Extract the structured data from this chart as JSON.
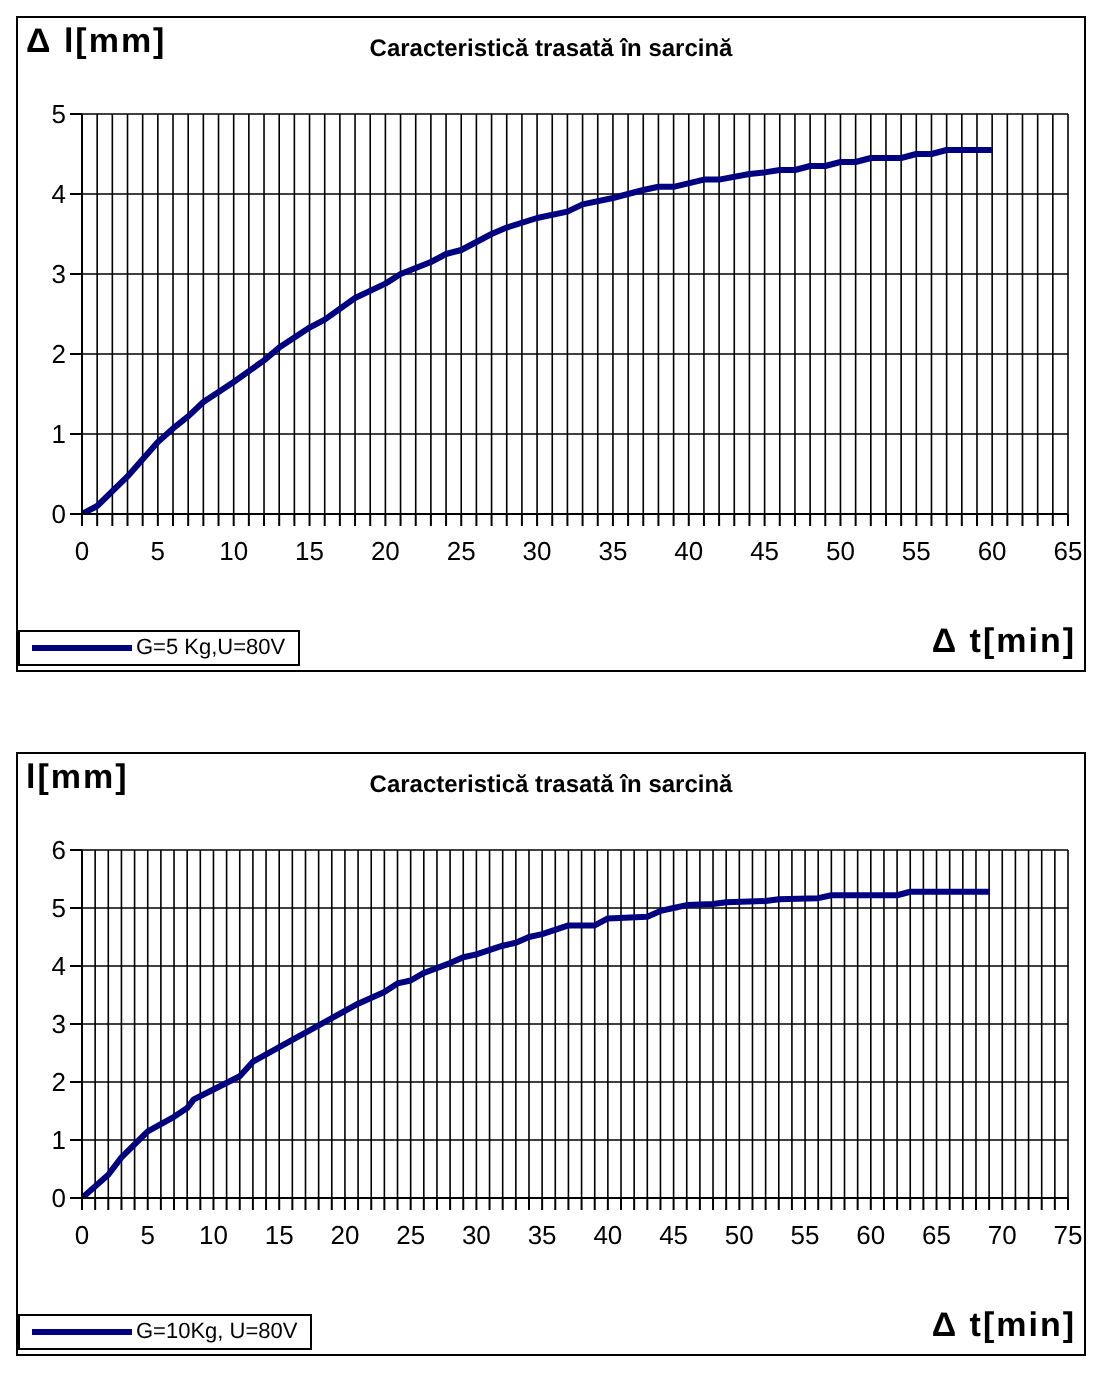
{
  "chart_data": [
    {
      "type": "line",
      "title": "Caracteristică trasată în sarcină",
      "xlabel": "Δ t[min]",
      "ylabel": "Δ l[mm]",
      "xlim": [
        0,
        65
      ],
      "xticks": [
        0,
        {
          "value": 1,
          "label": null
        },
        {
          "value": 2,
          "label": null
        },
        {
          "value": 3,
          "label": null
        },
        {
          "value": 4,
          "label": null
        },
        5,
        {
          "value": 6,
          "label": null
        },
        {
          "value": 7,
          "label": null
        },
        {
          "value": 8,
          "label": null
        },
        {
          "value": 9,
          "label": null
        },
        10,
        {
          "value": 11,
          "label": null
        },
        {
          "value": 12,
          "label": null
        },
        {
          "value": 13,
          "label": null
        },
        {
          "value": 14,
          "label": null
        },
        15,
        {
          "value": 16,
          "label": null
        },
        {
          "value": 17,
          "label": null
        },
        {
          "value": 18,
          "label": null
        },
        {
          "value": 19,
          "label": null
        },
        20,
        {
          "value": 21,
          "label": null
        },
        {
          "value": 22,
          "label": null
        },
        {
          "value": 23,
          "label": null
        },
        {
          "value": 24,
          "label": null
        },
        25,
        {
          "value": 26,
          "label": null
        },
        {
          "value": 27,
          "label": null
        },
        {
          "value": 28,
          "label": null
        },
        {
          "value": 29,
          "label": null
        },
        30,
        {
          "value": 31,
          "label": null
        },
        {
          "value": 32,
          "label": null
        },
        {
          "value": 33,
          "label": null
        },
        {
          "value": 34,
          "label": null
        },
        35,
        {
          "value": 36,
          "label": null
        },
        {
          "value": 37,
          "label": null
        },
        {
          "value": 38,
          "label": null
        },
        {
          "value": 39,
          "label": null
        },
        40,
        {
          "value": 41,
          "label": null
        },
        {
          "value": 42,
          "label": null
        },
        {
          "value": 43,
          "label": null
        },
        {
          "value": 44,
          "label": null
        },
        45,
        {
          "value": 46,
          "label": null
        },
        {
          "value": 47,
          "label": null
        },
        {
          "value": 48,
          "label": null
        },
        {
          "value": 49,
          "label": null
        },
        50,
        {
          "value": 51,
          "label": null
        },
        {
          "value": 52,
          "label": null
        },
        {
          "value": 53,
          "label": null
        },
        {
          "value": 54,
          "label": null
        },
        55,
        {
          "value": 56,
          "label": null
        },
        {
          "value": 57,
          "label": null
        },
        {
          "value": 58,
          "label": null
        },
        {
          "value": 59,
          "label": null
        },
        60,
        {
          "value": 61,
          "label": null
        },
        {
          "value": 62,
          "label": null
        },
        {
          "value": 63,
          "label": null
        },
        {
          "value": 64,
          "label": null
        },
        65
      ],
      "ylim": [
        0,
        5
      ],
      "yticks": [
        0,
        1,
        2,
        3,
        4,
        5
      ],
      "grid": true,
      "legend": "bottom left",
      "series": [
        {
          "name": "G=5 Kg,U=80V",
          "color": "#000080",
          "x": [
            0,
            1,
            3,
            5,
            6,
            7,
            8,
            10,
            12,
            13,
            15,
            16,
            18,
            20,
            21,
            23,
            24,
            25,
            27,
            28,
            30,
            32,
            33,
            35,
            37,
            38,
            39,
            41,
            42,
            44,
            45,
            46,
            47,
            48,
            49,
            50,
            51,
            52,
            54,
            55,
            56,
            57,
            60
          ],
          "values": [
            0,
            0.1,
            0.47,
            0.9,
            1.07,
            1.22,
            1.4,
            1.65,
            1.92,
            2.08,
            2.33,
            2.43,
            2.7,
            2.88,
            3.0,
            3.15,
            3.25,
            3.3,
            3.5,
            3.58,
            3.7,
            3.78,
            3.87,
            3.95,
            4.05,
            4.09,
            4.09,
            4.18,
            4.18,
            4.25,
            4.27,
            4.3,
            4.3,
            4.35,
            4.35,
            4.4,
            4.4,
            4.45,
            4.45,
            4.5,
            4.5,
            4.55,
            4.55
          ]
        }
      ]
    },
    {
      "type": "line",
      "title": "Caracteristică trasată în sarcină",
      "xlabel": "Δ t[min]",
      "ylabel": "l[mm]",
      "xlim": [
        0,
        75
      ],
      "xticks": [
        0,
        {
          "value": 1,
          "label": null
        },
        {
          "value": 2,
          "label": null
        },
        {
          "value": 3,
          "label": null
        },
        {
          "value": 4,
          "label": null
        },
        5,
        {
          "value": 6,
          "label": null
        },
        {
          "value": 7,
          "label": null
        },
        {
          "value": 8,
          "label": null
        },
        {
          "value": 9,
          "label": null
        },
        10,
        {
          "value": 11,
          "label": null
        },
        {
          "value": 12,
          "label": null
        },
        {
          "value": 13,
          "label": null
        },
        {
          "value": 14,
          "label": null
        },
        15,
        {
          "value": 16,
          "label": null
        },
        {
          "value": 17,
          "label": null
        },
        {
          "value": 18,
          "label": null
        },
        {
          "value": 19,
          "label": null
        },
        20,
        {
          "value": 21,
          "label": null
        },
        {
          "value": 22,
          "label": null
        },
        {
          "value": 23,
          "label": null
        },
        {
          "value": 24,
          "label": null
        },
        25,
        {
          "value": 26,
          "label": null
        },
        {
          "value": 27,
          "label": null
        },
        {
          "value": 28,
          "label": null
        },
        {
          "value": 29,
          "label": null
        },
        30,
        {
          "value": 31,
          "label": null
        },
        {
          "value": 32,
          "label": null
        },
        {
          "value": 33,
          "label": null
        },
        {
          "value": 34,
          "label": null
        },
        35,
        {
          "value": 36,
          "label": null
        },
        {
          "value": 37,
          "label": null
        },
        {
          "value": 38,
          "label": null
        },
        {
          "value": 39,
          "label": null
        },
        40,
        {
          "value": 41,
          "label": null
        },
        {
          "value": 42,
          "label": null
        },
        {
          "value": 43,
          "label": null
        },
        {
          "value": 44,
          "label": null
        },
        45,
        {
          "value": 46,
          "label": null
        },
        {
          "value": 47,
          "label": null
        },
        {
          "value": 48,
          "label": null
        },
        {
          "value": 49,
          "label": null
        },
        50,
        {
          "value": 51,
          "label": null
        },
        {
          "value": 52,
          "label": null
        },
        {
          "value": 53,
          "label": null
        },
        {
          "value": 54,
          "label": null
        },
        55,
        {
          "value": 56,
          "label": null
        },
        {
          "value": 57,
          "label": null
        },
        {
          "value": 58,
          "label": null
        },
        {
          "value": 59,
          "label": null
        },
        60,
        {
          "value": 61,
          "label": null
        },
        {
          "value": 62,
          "label": null
        },
        {
          "value": 63,
          "label": null
        },
        {
          "value": 64,
          "label": null
        },
        65,
        {
          "value": 66,
          "label": null
        },
        {
          "value": 67,
          "label": null
        },
        {
          "value": 68,
          "label": null
        },
        {
          "value": 69,
          "label": null
        },
        70,
        {
          "value": 71,
          "label": null
        },
        {
          "value": 72,
          "label": null
        },
        {
          "value": 73,
          "label": null
        },
        {
          "value": 74,
          "label": null
        },
        75
      ],
      "ylim": [
        0,
        6
      ],
      "yticks": [
        0,
        1,
        2,
        3,
        4,
        5,
        6
      ],
      "grid": true,
      "legend": "bottom left",
      "series": [
        {
          "name": "G=10Kg, U=80V",
          "color": "#000080",
          "x": [
            0,
            2,
            3,
            5,
            7,
            8,
            8.5,
            10,
            12,
            13,
            15,
            17,
            19,
            21,
            23,
            24,
            25,
            26,
            28,
            29,
            30,
            32,
            33,
            34,
            35,
            37,
            39,
            40,
            43,
            44,
            45,
            46,
            48,
            49,
            52,
            53,
            56,
            57,
            62,
            63,
            69
          ],
          "values": [
            0,
            0.4,
            0.7,
            1.15,
            1.4,
            1.55,
            1.7,
            1.87,
            2.1,
            2.35,
            2.6,
            2.85,
            3.1,
            3.35,
            3.55,
            3.7,
            3.75,
            3.88,
            4.05,
            4.15,
            4.2,
            4.35,
            4.4,
            4.5,
            4.55,
            4.7,
            4.7,
            4.82,
            4.85,
            4.95,
            5.0,
            5.05,
            5.07,
            5.1,
            5.12,
            5.15,
            5.17,
            5.22,
            5.22,
            5.28,
            5.28
          ]
        }
      ]
    }
  ]
}
